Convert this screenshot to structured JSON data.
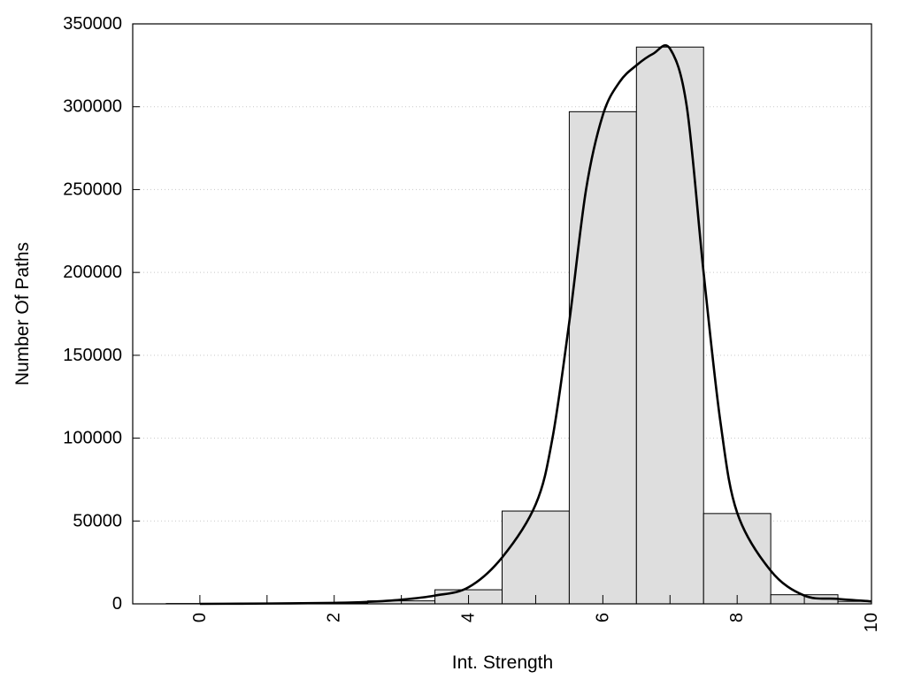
{
  "chart_data": {
    "type": "bar",
    "xlabel": "Int. Strength",
    "ylabel": "Number Of Paths",
    "xlim": [
      -1,
      10
    ],
    "ylim": [
      0,
      350000
    ],
    "x_ticks": [
      "0",
      "2",
      "4",
      "6",
      "8",
      "10"
    ],
    "y_ticks": [
      "0",
      "50000",
      "100000",
      "150000",
      "200000",
      "250000",
      "300000",
      "350000"
    ],
    "grid": "horizontal dotted",
    "legend": "none",
    "bar_color": "#dedede",
    "bar_edge_color": "#000000",
    "bins": [
      {
        "center": 0,
        "value": 200
      },
      {
        "center": 1,
        "value": 300
      },
      {
        "center": 2,
        "value": 500
      },
      {
        "center": 3,
        "value": 1800
      },
      {
        "center": 4,
        "value": 8500
      },
      {
        "center": 5,
        "value": 56000
      },
      {
        "center": 6,
        "value": 297000
      },
      {
        "center": 7,
        "value": 336000
      },
      {
        "center": 8,
        "value": 54500
      },
      {
        "center": 9,
        "value": 5500
      },
      {
        "center": 10,
        "value": 1500
      }
    ],
    "curve": {
      "name": "",
      "x": [
        0,
        1,
        2,
        2.5,
        3,
        3.5,
        4,
        4.5,
        5,
        5.25,
        5.5,
        5.75,
        6,
        6.25,
        6.5,
        6.75,
        7,
        7.25,
        7.5,
        7.75,
        8,
        8.5,
        9,
        9.5,
        10
      ],
      "y": [
        0,
        200,
        600,
        1200,
        2500,
        5000,
        10000,
        28000,
        60000,
        100000,
        170000,
        250000,
        295000,
        315000,
        325000,
        332000,
        335000,
        300000,
        200000,
        110000,
        55000,
        20000,
        5000,
        3000,
        1500
      ]
    }
  }
}
